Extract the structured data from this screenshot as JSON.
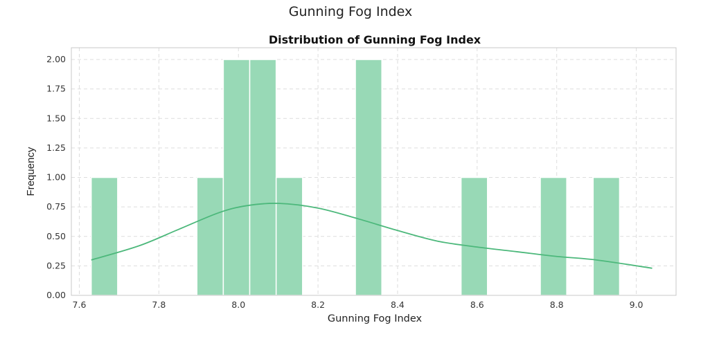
{
  "page_title": "Gunning Fog Index",
  "chart_data": {
    "type": "bar",
    "title": "Distribution of Gunning Fog Index",
    "xlabel": "Gunning Fog Index",
    "ylabel": "Frequency",
    "xlim": [
      7.58,
      9.1
    ],
    "ylim": [
      0,
      2.1
    ],
    "x_ticks": [
      "7.6",
      "7.8",
      "8.0",
      "8.2",
      "8.4",
      "8.6",
      "8.8",
      "9.0"
    ],
    "y_ticks": [
      "0.00",
      "0.25",
      "0.50",
      "0.75",
      "1.00",
      "1.25",
      "1.50",
      "1.75",
      "2.00"
    ],
    "bin_edges": [
      7.63,
      7.6964,
      7.7628,
      7.8292,
      7.8956,
      7.962,
      8.0284,
      8.0948,
      8.1612,
      8.2276,
      8.294,
      8.3604,
      8.4268,
      8.4932,
      8.5596,
      8.626,
      8.6924,
      8.7588,
      8.8252,
      8.8916,
      8.958,
      9.04
    ],
    "series": [
      {
        "type": "histogram",
        "values": [
          1,
          0,
          0,
          0,
          1,
          2,
          2,
          1,
          0,
          0,
          2,
          0,
          0,
          0,
          1,
          0,
          0,
          1,
          0,
          1,
          0
        ],
        "color": "#98d9b6"
      },
      {
        "type": "kde-line",
        "x": [
          7.63,
          7.75,
          7.85,
          7.95,
          8.02,
          8.1,
          8.2,
          8.3,
          8.4,
          8.5,
          8.6,
          8.7,
          8.8,
          8.9,
          9.04
        ],
        "values": [
          0.3,
          0.42,
          0.56,
          0.7,
          0.76,
          0.78,
          0.74,
          0.65,
          0.55,
          0.46,
          0.41,
          0.37,
          0.33,
          0.3,
          0.23
        ],
        "color": "#4cb87b"
      }
    ],
    "grid": true
  }
}
